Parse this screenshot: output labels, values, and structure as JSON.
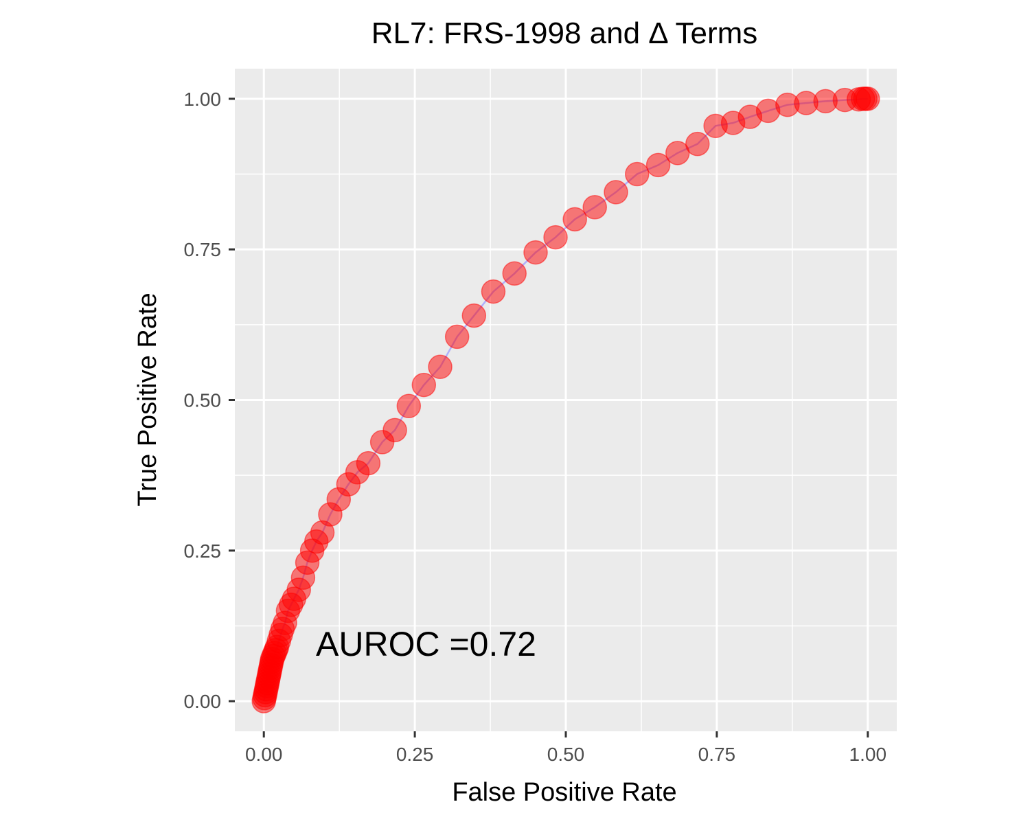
{
  "chart_data": {
    "type": "scatter",
    "title": "RL7: FRS-1998 and Δ Terms",
    "xlabel": "False Positive Rate",
    "ylabel": "True Positive Rate",
    "xlim": [
      -0.048,
      1.048
    ],
    "ylim": [
      -0.05,
      1.05
    ],
    "x_ticks": [
      0,
      0.25,
      0.5,
      0.75,
      1
    ],
    "x_tick_labels": [
      "0.00",
      "0.25",
      "0.50",
      "0.75",
      "1.00"
    ],
    "y_ticks": [
      0,
      0.25,
      0.5,
      0.75,
      1
    ],
    "y_tick_labels": [
      "0.00",
      "0.25",
      "0.50",
      "0.75",
      "1.00"
    ],
    "grid": true,
    "annotation": "AUROC =0.72",
    "colors": {
      "panel": "#ebebeb",
      "grid": "#ffffff",
      "point_fill": "#ff0000",
      "point_stroke": "#ff0000",
      "line": "#a0a0ff"
    },
    "x": [
      0,
      0.001,
      0.002,
      0.003,
      0.004,
      0.005,
      0.006,
      0.007,
      0.008,
      0.009,
      0.01,
      0.011,
      0.012,
      0.013,
      0.014,
      0.016,
      0.018,
      0.02,
      0.022,
      0.025,
      0.028,
      0.031,
      0.035,
      0.04,
      0.045,
      0.05,
      0.058,
      0.065,
      0.072,
      0.08,
      0.087,
      0.097,
      0.11,
      0.124,
      0.14,
      0.155,
      0.173,
      0.196,
      0.217,
      0.24,
      0.265,
      0.292,
      0.32,
      0.348,
      0.38,
      0.415,
      0.45,
      0.483,
      0.515,
      0.548,
      0.583,
      0.618,
      0.653,
      0.685,
      0.718,
      0.748,
      0.777,
      0.805,
      0.835,
      0.867,
      0.898,
      0.93,
      0.962,
      0.985,
      0.992,
      0.996,
      1.0
    ],
    "y": [
      0,
      0.005,
      0.01,
      0.015,
      0.02,
      0.025,
      0.03,
      0.035,
      0.04,
      0.045,
      0.05,
      0.055,
      0.06,
      0.065,
      0.07,
      0.075,
      0.08,
      0.085,
      0.09,
      0.1,
      0.11,
      0.12,
      0.13,
      0.15,
      0.16,
      0.17,
      0.185,
      0.205,
      0.23,
      0.25,
      0.265,
      0.28,
      0.31,
      0.335,
      0.36,
      0.38,
      0.395,
      0.43,
      0.45,
      0.49,
      0.525,
      0.555,
      0.605,
      0.64,
      0.68,
      0.71,
      0.745,
      0.77,
      0.8,
      0.82,
      0.845,
      0.875,
      0.89,
      0.91,
      0.925,
      0.955,
      0.96,
      0.97,
      0.98,
      0.99,
      0.993,
      0.996,
      0.998,
      0.999,
      1.0,
      1.0,
      1.0
    ]
  }
}
